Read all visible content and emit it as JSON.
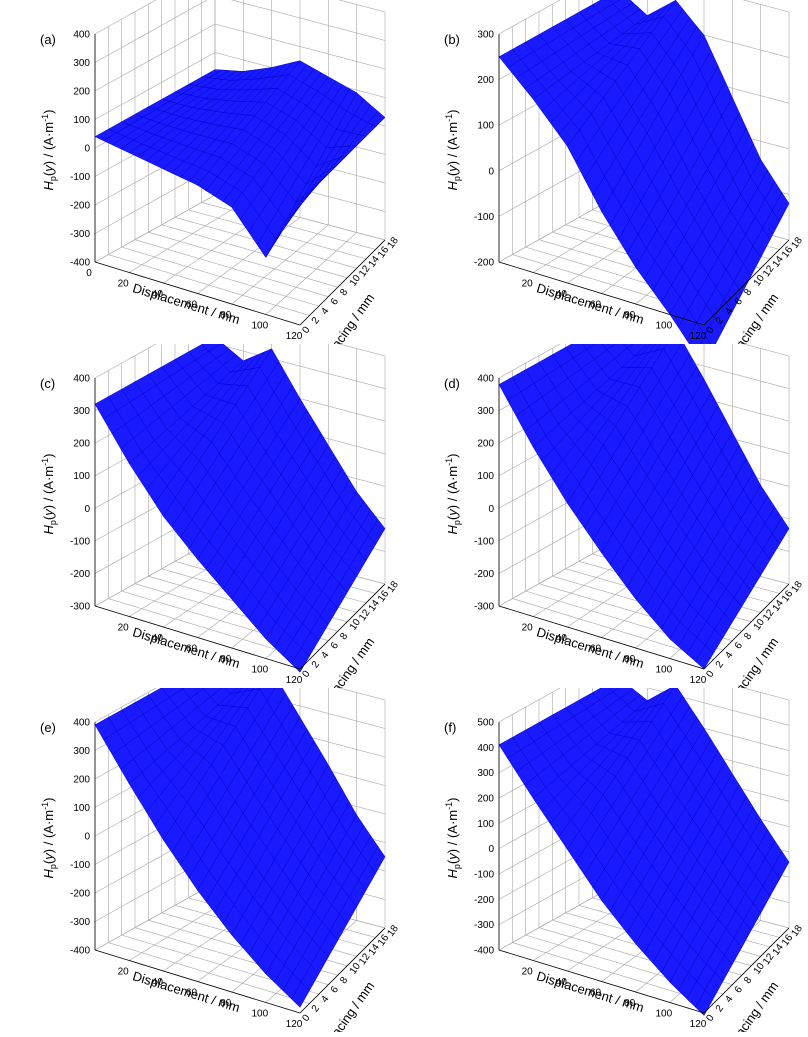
{
  "axes": {
    "x_title": "Displacement / mm",
    "y_title": "Spacing / mm",
    "z_title": {
      "main": "H",
      "sub": "p",
      "mid": "(",
      "var": "y",
      "close": ") / (A·m",
      "sup": "-1",
      "end": ")"
    },
    "x_ticks": [
      0,
      20,
      40,
      60,
      80,
      100,
      120
    ],
    "y_ticks": [
      0,
      2,
      4,
      6,
      8,
      10,
      12,
      14,
      16,
      18
    ]
  },
  "colors": {
    "surface": "#1a1aff",
    "surface_edge": "#0000cc",
    "grid": "#a8a8a8",
    "axis": "#000000"
  },
  "chart_data": [
    {
      "type": "surface",
      "label": "(a)",
      "x_ticks_shown": [
        0,
        20,
        40,
        60,
        80,
        100,
        120
      ],
      "zlim": [
        -400,
        400
      ],
      "z_ticks": [
        -400,
        -300,
        -200,
        -100,
        0,
        100,
        200,
        300,
        400
      ],
      "x": [
        0,
        20,
        40,
        60,
        80,
        100,
        120
      ],
      "z_near": [
        40,
        20,
        0,
        -20,
        -60,
        -200,
        30
      ],
      "z_far": [
        40,
        60,
        100,
        150,
        120,
        90,
        30
      ],
      "grid": true
    },
    {
      "type": "surface",
      "label": "(b)",
      "x_ticks_shown": [
        20,
        40,
        60,
        80,
        100,
        120
      ],
      "zlim": [
        -200,
        300
      ],
      "z_ticks": [
        -200,
        -100,
        0,
        100,
        200,
        300
      ],
      "x": [
        0,
        20,
        40,
        60,
        80,
        100,
        120
      ],
      "z_near": [
        250,
        180,
        100,
        -20,
        -120,
        -200,
        -290
      ],
      "z_far": [
        250,
        210,
        260,
        200,
        80,
        -40,
        -120
      ],
      "grid": true
    },
    {
      "type": "surface",
      "label": "(c)",
      "x_ticks_shown": [
        20,
        40,
        60,
        80,
        100,
        120
      ],
      "zlim": [
        -300,
        400
      ],
      "z_ticks": [
        -300,
        -200,
        -100,
        0,
        100,
        200,
        300,
        400
      ],
      "x": [
        0,
        20,
        40,
        60,
        80,
        100,
        120
      ],
      "z_near": [
        320,
        170,
        40,
        -60,
        -150,
        -240,
        -310
      ],
      "z_far": [
        320,
        270,
        330,
        200,
        80,
        -40,
        -130
      ],
      "grid": true
    },
    {
      "type": "surface",
      "label": "(d)",
      "x_ticks_shown": [
        20,
        40,
        60,
        80,
        100,
        120
      ],
      "zlim": [
        -300,
        400
      ],
      "z_ticks": [
        -300,
        -200,
        -100,
        0,
        100,
        200,
        300,
        400
      ],
      "x": [
        0,
        20,
        40,
        60,
        80,
        100,
        120
      ],
      "z_near": [
        380,
        220,
        80,
        -40,
        -150,
        -240,
        -300
      ],
      "z_far": [
        380,
        320,
        390,
        260,
        120,
        -20,
        -130
      ],
      "grid": true
    },
    {
      "type": "surface",
      "label": "(e)",
      "x_ticks_shown": [
        20,
        40,
        60,
        80,
        100,
        120
      ],
      "zlim": [
        -400,
        400
      ],
      "z_ticks": [
        -400,
        -300,
        -200,
        -100,
        0,
        100,
        200,
        300,
        400
      ],
      "x": [
        0,
        20,
        40,
        60,
        80,
        100,
        120
      ],
      "z_near": [
        390,
        220,
        60,
        -80,
        -200,
        -300,
        -380
      ],
      "z_far": [
        390,
        330,
        400,
        260,
        120,
        -30,
        -150
      ],
      "grid": true
    },
    {
      "type": "surface",
      "label": "(f)",
      "x_ticks_shown": [
        20,
        40,
        60,
        80,
        100,
        120
      ],
      "zlim": [
        -400,
        500
      ],
      "z_ticks": [
        -400,
        -300,
        -200,
        -100,
        0,
        100,
        200,
        300,
        400,
        500
      ],
      "x": [
        0,
        20,
        40,
        60,
        80,
        100,
        120
      ],
      "z_near": [
        410,
        240,
        80,
        -80,
        -210,
        -320,
        -410
      ],
      "z_far": [
        410,
        350,
        440,
        300,
        150,
        0,
        -140
      ],
      "grid": true
    }
  ]
}
